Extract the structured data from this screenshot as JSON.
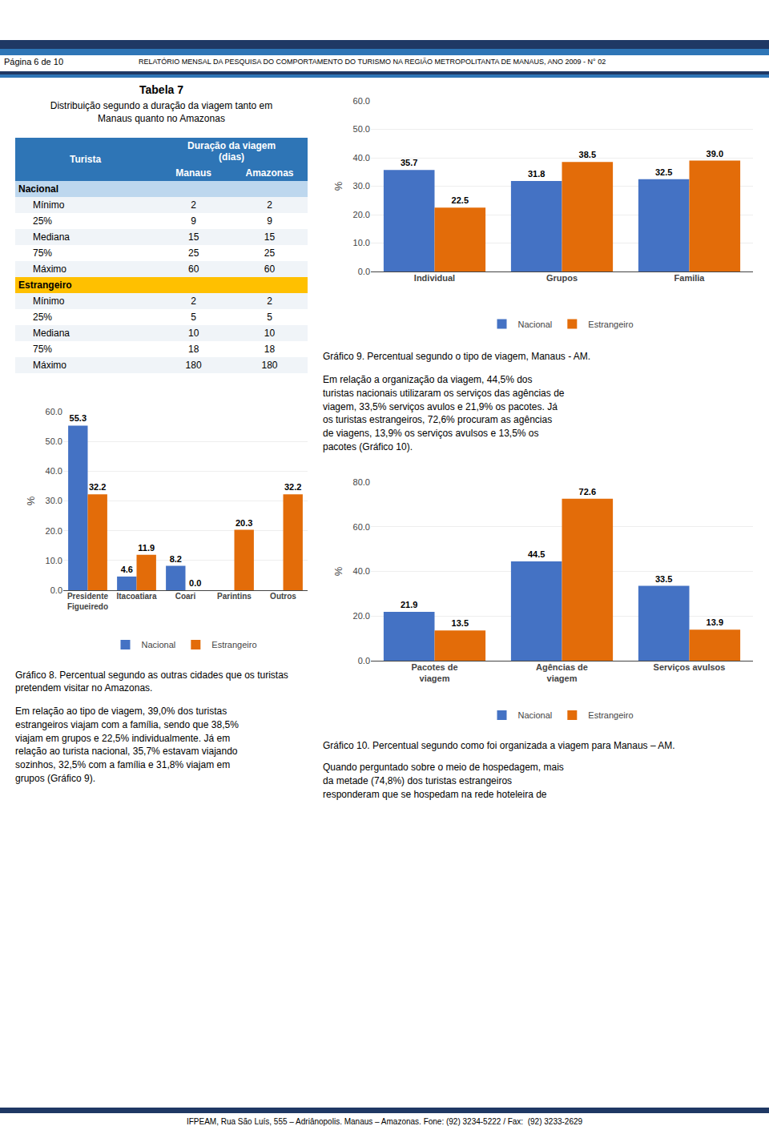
{
  "header": {
    "page_label": "Página 6 de 10",
    "report": "RELATÓRIO MENSAL DA PESQUISA DO COMPORTAMENTO DO TURISMO NA REGIÃO METROPOLITANTA DE MANAUS, ANO 2009 - N° 02",
    "colors": [
      "#1F3864",
      "#2E75B6"
    ]
  },
  "table": {
    "title": "Tabela 7",
    "subtitle": [
      "Distribuição segundo a duração da viagem tanto em",
      "Manaus quanto no Amazonas"
    ],
    "columns": [
      "Turista",
      "Duração da viagem\n(dias)"
    ],
    "subcolumns": [
      "Manaus",
      "Amazonas"
    ],
    "header_color": "#2E75B6",
    "groups": [
      {
        "name": "Nacional",
        "color": "#BDD7EE",
        "rows": [
          [
            "Mínimo",
            2,
            2
          ],
          [
            "25%",
            9,
            9
          ],
          [
            "Mediana",
            15,
            15
          ],
          [
            "75%",
            25,
            25
          ],
          [
            "Máximo",
            60,
            60
          ]
        ]
      },
      {
        "name": "Estrangeiro",
        "color": "#FFC000",
        "rows": [
          [
            "Mínimo",
            2,
            2
          ],
          [
            "25%",
            5,
            5
          ],
          [
            "Mediana",
            10,
            10
          ],
          [
            "75%",
            18,
            18
          ],
          [
            "Máximo",
            180,
            180
          ]
        ]
      }
    ]
  },
  "chart_data": [
    {
      "type": "bar",
      "title": "Gráfico 9. Percentual segundo o tipo de viagem, Manaus - AM.",
      "categories": [
        "Individual",
        "Grupos",
        "Familia"
      ],
      "series": [
        {
          "name": "Nacional",
          "color": "#4472C4",
          "values": [
            35.7,
            31.8,
            32.5
          ],
          "value_labels": [
            "35.7",
            "31.8",
            "32.5"
          ]
        },
        {
          "name": "Estrangeiro",
          "color": "#E36C09",
          "values": [
            22.5,
            38.5,
            39.0
          ],
          "value_labels": [
            "22.5",
            "38.5",
            "39.0"
          ]
        }
      ],
      "ylabel": "%",
      "ylim": [
        0,
        60
      ],
      "yticks": [
        {
          "value": 0,
          "label": "0.0"
        },
        {
          "value": 10,
          "label": "10.0"
        },
        {
          "value": 20,
          "label": "20.0"
        },
        {
          "value": 30,
          "label": "30.0"
        },
        {
          "value": 40,
          "label": "40.0"
        },
        {
          "value": 50,
          "label": "50.0"
        },
        {
          "value": 60,
          "label": "60.0"
        }
      ],
      "grid": true,
      "legend": "bottom",
      "data_labels": true
    },
    {
      "type": "bar",
      "title": "Gráfico 8. Percentual segundo as outras cidades que os turistas pretendem visitar no Amazonas.",
      "categories": [
        "Presidente\nFigueiredo",
        "Itacoatiara",
        "Coari",
        "Parintins",
        "Outros"
      ],
      "series": [
        {
          "name": "Nacional",
          "color": "#4472C4",
          "values": [
            55.3,
            4.6,
            8.2,
            0.0,
            0.0
          ],
          "value_labels": [
            "55.3",
            "4.6",
            "8.2",
            null,
            null
          ]
        },
        {
          "name": "Estrangeiro",
          "color": "#E36C09",
          "values": [
            32.2,
            11.9,
            0.0,
            20.3,
            32.2
          ],
          "value_labels": [
            "32.2",
            "11.9",
            "0.0",
            "20.3",
            "32.2"
          ]
        }
      ],
      "ylabel": "%",
      "ylim": [
        0,
        60
      ],
      "yticks": [
        {
          "value": 0,
          "label": "0.0"
        },
        {
          "value": 10,
          "label": "10.0"
        },
        {
          "value": 20,
          "label": "20.0"
        },
        {
          "value": 30,
          "label": "30.0"
        },
        {
          "value": 40,
          "label": "40.0"
        },
        {
          "value": 50,
          "label": "50.0"
        },
        {
          "value": 60,
          "label": "60.0"
        }
      ],
      "grid": true,
      "legend": "bottom",
      "data_labels": true
    },
    {
      "type": "bar",
      "title": "Gráfico 10. Percentual segundo como foi organizada a viagem para Manaus – AM.",
      "categories": [
        "Pacotes de\nviagem",
        "Agências de\nviagem",
        "Serviços avulsos"
      ],
      "series": [
        {
          "name": "Nacional",
          "color": "#4472C4",
          "values": [
            21.9,
            44.5,
            33.5
          ],
          "value_labels": [
            "21.9",
            "44.5",
            "33.5"
          ]
        },
        {
          "name": "Estrangeiro",
          "color": "#E36C09",
          "values": [
            13.5,
            72.6,
            13.9
          ],
          "value_labels": [
            "13.5",
            "72.6",
            "13.9"
          ]
        }
      ],
      "ylabel": "%",
      "ylim": [
        0,
        80
      ],
      "yticks": [
        {
          "value": 0,
          "label": "0.0"
        },
        {
          "value": 20,
          "label": "20.0"
        },
        {
          "value": 40,
          "label": "40.0"
        },
        {
          "value": 60,
          "label": "60.0"
        },
        {
          "value": 80,
          "label": "80.0"
        }
      ],
      "grid": true,
      "legend": "bottom",
      "data_labels": true
    }
  ],
  "text_blocks": [
    "Em relação ao tipo de viagem, 39,0% dos turistas\nestrangeiros viajam com a família, sendo que 38,5%\nviajam em grupos e 22,5% individualmente. Já em\nrelação ao turista nacional, 35,7% estavam viajando\nsozinhos, 32,5% com a família e 31,8% viajam em\ngrupos (Gráfico 9).",
    "Em relação a organização da viagem, 44,5% dos\nturistas nacionais utilizaram os serviços das agências de\nviagem, 33,5% serviços avulos e 21,9% os pacotes. Já\nos turistas estrangeiros, 72,6% procuram as agências\nde viagens, 13,9% os serviços avulsos e 13,5% os\npacotes (Gráfico 10).",
    "Quando perguntado sobre o meio de hospedagem, mais\nda metade (74,8%) dos turistas estrangeiros\nresponderam que se hospedam na rede hoteleira de"
  ],
  "footer": {
    "text": "IFPEAM, Rua São Luís, 555 – Adriânopolis. Manaus – Amazonas. Fone: (92) 3234-5222 / Fax:  (92) 3233-2629",
    "color": "#1F3864"
  }
}
